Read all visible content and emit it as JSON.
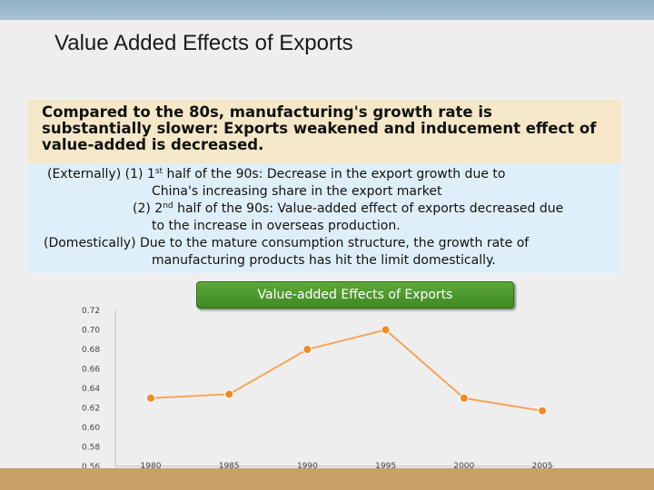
{
  "slide": {
    "title": "Value Added Effects of Exports",
    "summary": [
      "Compared to the 80s, manufacturing's growth rate is",
      "substantially slower:  Exports weakened and inducement effect of",
      "value-added is decreased."
    ],
    "details": {
      "line1_prefix": "(Externally) (1) 1",
      "line1_sup": "st",
      "line1_suffix": " half of the 90s: Decrease in the export growth due to",
      "line2": "China's increasing share in the export market",
      "line3_prefix": "(2) 2",
      "line3_sup": "nd",
      "line3_suffix": " half of the 90s: Value-added effect of exports decreased due",
      "line4": "to the increase in overseas production.",
      "line5": "(Domestically) Due to the mature consumption structure, the growth rate of",
      "line6": "manufacturing products has hit the limit domestically."
    },
    "chart_label": "Value-added Effects of Exports"
  },
  "colors": {
    "summary_bg": "#f5e8c8",
    "details_bg": "#dfeff9",
    "badge_green": "#4a9a2c",
    "series_orange": "#f28a1e",
    "line_orange": "#f5a55a"
  },
  "chart_data": {
    "type": "line",
    "title": "Value-added Effects of Exports",
    "x": [
      "1980",
      "1985",
      "1990",
      "1995",
      "2000",
      "2005"
    ],
    "series": [
      {
        "values": [
          0.63,
          0.634,
          0.68,
          0.7,
          0.63,
          0.617
        ]
      }
    ],
    "ylim": [
      0.56,
      0.72
    ],
    "yticks": [
      "0.72",
      "0.70",
      "0.68",
      "0.66",
      "0.64",
      "0.62",
      "0.60",
      "0.58",
      "0.56"
    ],
    "grid": false,
    "xlabel": "",
    "ylabel": ""
  }
}
